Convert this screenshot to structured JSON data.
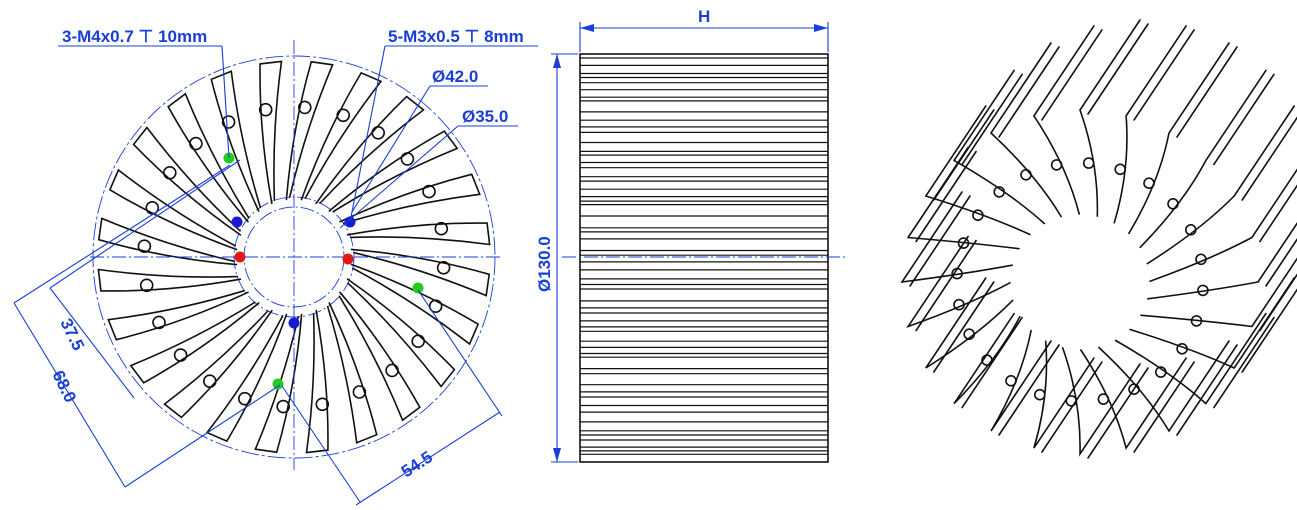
{
  "front_view": {
    "callouts": {
      "m4_thread": "3-M4x0.7 ⊤ 10mm",
      "m3_thread": "5-M3x0.5 ⊤ 8mm",
      "dia_42": "Ø42.0",
      "dia_35": "Ø35.0"
    },
    "dimensions": {
      "d_37_5": "37.5",
      "d_68_0": "68.0",
      "d_54_5": "54.5"
    },
    "hole_colors": {
      "m4": "#22cc22",
      "m3": "#1a1ad6",
      "mount": "#e01818"
    },
    "fin_count": 24
  },
  "side_view": {
    "height_label": "H",
    "diameter_label": "Ø130.0"
  },
  "colors": {
    "dimension": "#1a3fd6",
    "outline": "#111111"
  }
}
